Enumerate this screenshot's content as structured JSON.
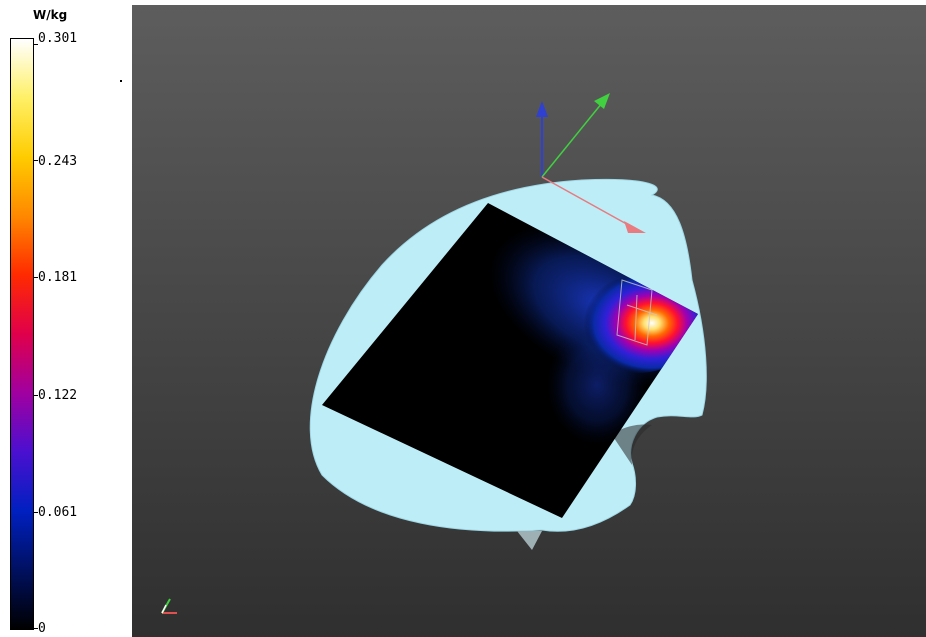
{
  "legend": {
    "unit": "W/kg",
    "ticks": [
      "0.301",
      "0.243",
      "0.181",
      "0.122",
      "0.061",
      "0"
    ],
    "max_value": 0.301,
    "min_value": 0,
    "gradient_colors": [
      "#ffffff",
      "#fff066",
      "#ffcc00",
      "#ff8800",
      "#ff2a00",
      "#e0004a",
      "#a000a0",
      "#4a10d0",
      "#0020c0",
      "#001060",
      "#000000"
    ]
  },
  "viewport": {
    "background_colors": [
      "#5d5d5d",
      "#2f2f2f"
    ],
    "phantom_color": "#bdeef8",
    "measurement_plane_color": "#000000",
    "axis_colors": {
      "x": "#e87a80",
      "y": "#40d040",
      "z": "#3040d0"
    }
  }
}
